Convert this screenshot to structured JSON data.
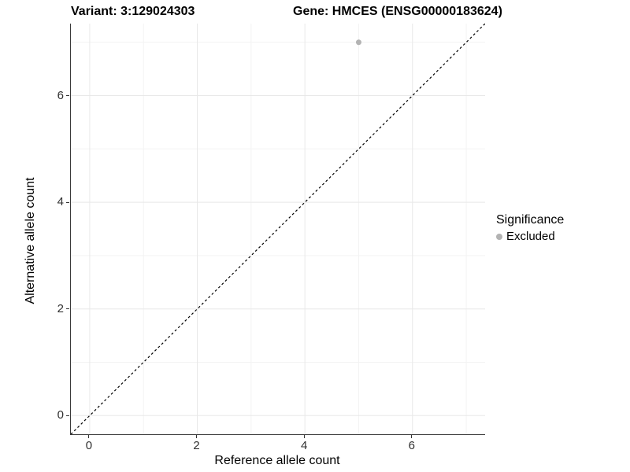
{
  "title": {
    "variant_label": "Variant: 3:129024303",
    "gene_label": "Gene: HMCES (ENSG00000183624)"
  },
  "axes": {
    "x_label": "Reference allele count",
    "y_label": "Alternative allele count"
  },
  "legend": {
    "title": "Significance",
    "items": [
      {
        "label": "Excluded",
        "color": "#b3b3b3"
      }
    ]
  },
  "colors": {
    "point": "#b3b3b3",
    "grid_major": "#e8e8e8",
    "grid_minor": "#f3f3f3",
    "axis_line": "#3a3a3a",
    "identity_line": "#000000"
  },
  "chart_data": {
    "type": "scatter",
    "title": "Variant: 3:129024303    Gene: HMCES (ENSG00000183624)",
    "xlabel": "Reference allele count",
    "ylabel": "Alternative allele count",
    "xlim": [
      -0.35,
      7.35
    ],
    "ylim": [
      -0.35,
      7.35
    ],
    "x_breaks": [
      0,
      2,
      4,
      6
    ],
    "y_breaks": [
      0,
      2,
      4,
      6
    ],
    "x_minor_breaks": [
      1,
      3,
      5,
      7
    ],
    "y_minor_breaks": [
      1,
      3,
      5,
      7
    ],
    "grid": true,
    "legend_position": "right",
    "series": [
      {
        "name": "Excluded",
        "color": "#b3b3b3",
        "points": [
          {
            "x": 5,
            "y": 7
          }
        ]
      }
    ],
    "reference_line": {
      "kind": "identity",
      "equation": "y = x",
      "style": "dashed",
      "color": "#000000"
    }
  }
}
